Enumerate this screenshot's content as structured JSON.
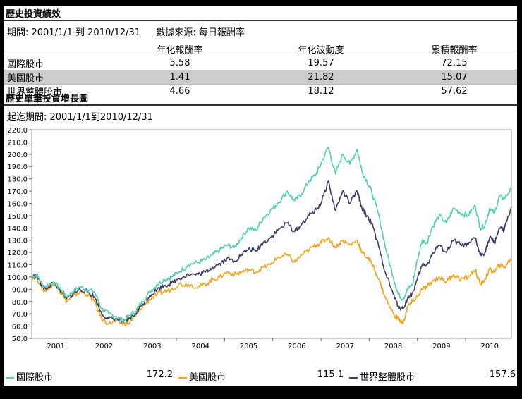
{
  "summary": {
    "title": "歷史投資績效",
    "period_label": "期間: 2001/1/1 到 2010/12/31",
    "source_label": "數據來源: 每日報酬率",
    "columns": [
      "年化報酬率",
      "年化波動度",
      "累積報酬率"
    ],
    "rows": [
      {
        "name": "國際股市",
        "annual_return": "5.58",
        "volatility": "19.57",
        "cumulative": "72.15"
      },
      {
        "name": "美國股市",
        "annual_return": "1.41",
        "volatility": "21.82",
        "cumulative": "15.07"
      },
      {
        "name": "世界整體股市",
        "annual_return": "4.66",
        "volatility": "18.12",
        "cumulative": "57.62"
      }
    ]
  },
  "growth": {
    "title": "歷史單筆投資增長圖",
    "period_label": "起迄期間: 2001/1/1到2010/12/31"
  },
  "legend": [
    {
      "name": "國際股市",
      "value": "172.2",
      "color": "#4fd1b0"
    },
    {
      "name": "美國股市",
      "value": "115.1",
      "color": "#f5a31a"
    },
    {
      "name": "世界整體股市",
      "value": "157.6",
      "color": "#3c3c6a"
    }
  ],
  "chart_data": {
    "type": "line",
    "title": "",
    "xlabel": "",
    "ylabel": "",
    "ylim": [
      50,
      220
    ],
    "yticks": [
      "50.0",
      "60.0",
      "70.0",
      "80.0",
      "90.0",
      "100.0",
      "110.0",
      "120.0",
      "130.0",
      "140.0",
      "150.0",
      "160.0",
      "170.0",
      "180.0",
      "190.0",
      "200.0",
      "210.0",
      "220.0"
    ],
    "xticks": [
      "2001",
      "2002",
      "2003",
      "2004",
      "2005",
      "2006",
      "2007",
      "2008",
      "2009",
      "2010"
    ],
    "xlim": [
      2001.0,
      2010.95
    ],
    "grid": false,
    "legend_position": "bottom",
    "series": [
      {
        "name": "國際股市",
        "color": "#4fd1b0",
        "x": [
          2001.0,
          2001.1,
          2001.25,
          2001.45,
          2001.65,
          2001.72,
          2001.85,
          2002.0,
          2002.15,
          2002.3,
          2002.45,
          2002.6,
          2002.75,
          2002.9,
          2003.0,
          2003.15,
          2003.3,
          2003.45,
          2003.6,
          2003.75,
          2003.9,
          2004.05,
          2004.25,
          2004.45,
          2004.6,
          2004.75,
          2004.9,
          2005.05,
          2005.2,
          2005.35,
          2005.5,
          2005.65,
          2005.8,
          2005.95,
          2006.1,
          2006.3,
          2006.45,
          2006.6,
          2006.75,
          2006.9,
          2007.0,
          2007.15,
          2007.3,
          2007.45,
          2007.6,
          2007.75,
          2007.85,
          2007.95,
          2008.05,
          2008.2,
          2008.35,
          2008.5,
          2008.6,
          2008.7,
          2008.8,
          2008.9,
          2009.0,
          2009.1,
          2009.2,
          2009.3,
          2009.45,
          2009.6,
          2009.75,
          2009.9,
          2010.05,
          2010.2,
          2010.3,
          2010.4,
          2010.5,
          2010.6,
          2010.7,
          2010.8,
          2010.95
        ],
        "y": [
          100,
          102,
          92,
          96,
          88,
          84,
          88,
          92,
          90,
          88,
          74,
          70,
          68,
          64,
          68,
          72,
          80,
          88,
          94,
          98,
          100,
          104,
          110,
          112,
          114,
          118,
          122,
          126,
          124,
          132,
          140,
          138,
          148,
          154,
          160,
          170,
          162,
          168,
          178,
          184,
          192,
          206,
          184,
          200,
          192,
          204,
          186,
          178,
          170,
          150,
          122,
          100,
          86,
          82,
          90,
          94,
          114,
          130,
          128,
          140,
          150,
          144,
          156,
          152,
          150,
          158,
          140,
          142,
          156,
          152,
          166,
          164,
          172
        ]
      },
      {
        "name": "美國股市",
        "color": "#f5a31a",
        "x": [
          2001.0,
          2001.1,
          2001.25,
          2001.45,
          2001.65,
          2001.72,
          2001.85,
          2002.0,
          2002.15,
          2002.3,
          2002.45,
          2002.6,
          2002.75,
          2002.9,
          2003.0,
          2003.15,
          2003.3,
          2003.45,
          2003.6,
          2003.75,
          2003.9,
          2004.05,
          2004.25,
          2004.45,
          2004.6,
          2004.75,
          2004.9,
          2005.05,
          2005.2,
          2005.35,
          2005.5,
          2005.65,
          2005.8,
          2005.95,
          2006.1,
          2006.3,
          2006.45,
          2006.6,
          2006.75,
          2006.9,
          2007.0,
          2007.15,
          2007.3,
          2007.45,
          2007.6,
          2007.75,
          2007.85,
          2007.95,
          2008.05,
          2008.2,
          2008.35,
          2008.5,
          2008.6,
          2008.7,
          2008.8,
          2008.9,
          2009.0,
          2009.1,
          2009.2,
          2009.3,
          2009.45,
          2009.6,
          2009.75,
          2009.9,
          2010.05,
          2010.2,
          2010.3,
          2010.4,
          2010.5,
          2010.6,
          2010.7,
          2010.8,
          2010.95
        ],
        "y": [
          100,
          100,
          88,
          94,
          86,
          80,
          84,
          88,
          86,
          80,
          66,
          62,
          64,
          62,
          62,
          68,
          76,
          82,
          86,
          88,
          90,
          94,
          94,
          92,
          94,
          98,
          100,
          104,
          102,
          104,
          106,
          104,
          108,
          110,
          116,
          118,
          112,
          118,
          122,
          126,
          128,
          132,
          124,
          130,
          126,
          130,
          120,
          116,
          112,
          98,
          82,
          70,
          66,
          62,
          76,
          80,
          84,
          90,
          92,
          96,
          100,
          96,
          102,
          98,
          100,
          106,
          94,
          98,
          106,
          104,
          110,
          108,
          115
        ]
      },
      {
        "name": "世界整體股市",
        "color": "#3c3c6a",
        "x": [
          2001.0,
          2001.1,
          2001.25,
          2001.45,
          2001.65,
          2001.72,
          2001.85,
          2002.0,
          2002.15,
          2002.3,
          2002.45,
          2002.6,
          2002.75,
          2002.9,
          2003.0,
          2003.15,
          2003.3,
          2003.45,
          2003.6,
          2003.75,
          2003.9,
          2004.05,
          2004.25,
          2004.45,
          2004.6,
          2004.75,
          2004.9,
          2005.05,
          2005.2,
          2005.35,
          2005.5,
          2005.65,
          2005.8,
          2005.95,
          2006.1,
          2006.3,
          2006.45,
          2006.6,
          2006.75,
          2006.9,
          2007.0,
          2007.15,
          2007.3,
          2007.45,
          2007.6,
          2007.75,
          2007.85,
          2007.95,
          2008.05,
          2008.2,
          2008.35,
          2008.5,
          2008.6,
          2008.7,
          2008.8,
          2008.9,
          2009.0,
          2009.1,
          2009.2,
          2009.3,
          2009.45,
          2009.6,
          2009.75,
          2009.9,
          2010.05,
          2010.2,
          2010.3,
          2010.4,
          2010.5,
          2010.6,
          2010.7,
          2010.8,
          2010.95
        ],
        "y": [
          100,
          101,
          90,
          95,
          87,
          82,
          86,
          90,
          88,
          84,
          70,
          66,
          66,
          63,
          65,
          70,
          78,
          85,
          90,
          93,
          95,
          99,
          102,
          102,
          104,
          108,
          111,
          115,
          113,
          118,
          123,
          121,
          128,
          132,
          138,
          144,
          137,
          143,
          150,
          155,
          160,
          178,
          154,
          170,
          160,
          170,
          156,
          150,
          144,
          124,
          102,
          86,
          76,
          74,
          83,
          87,
          98,
          110,
          110,
          118,
          126,
          120,
          130,
          126,
          126,
          132,
          118,
          120,
          132,
          128,
          140,
          138,
          157.6
        ]
      }
    ]
  }
}
